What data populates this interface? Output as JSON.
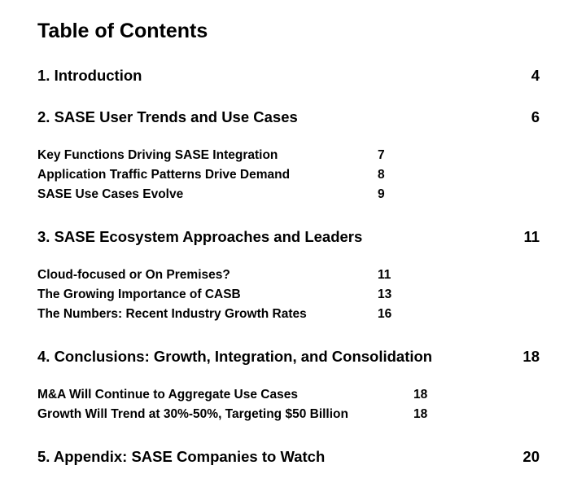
{
  "toc": {
    "title": "Table of Contents",
    "sections": [
      {
        "label": "1. Introduction",
        "page": "4",
        "subsections": []
      },
      {
        "label": "2. SASE User Trends and Use Cases",
        "page": "6",
        "subsections": [
          {
            "label": "Key Functions Driving SASE Integration",
            "page": "7"
          },
          {
            "label": "Application Traffic Patterns Drive Demand",
            "page": "8"
          },
          {
            "label": "SASE Use Cases Evolve",
            "page": "9"
          }
        ]
      },
      {
        "label": "3. SASE Ecosystem Approaches and Leaders",
        "page": "11",
        "subsections": [
          {
            "label": "Cloud-focused or On Premises?",
            "page": "11"
          },
          {
            "label": "The Growing Importance of CASB",
            "page": "13"
          },
          {
            "label": "The Numbers: Recent Industry Growth Rates",
            "page": "16"
          }
        ]
      },
      {
        "label": "4. Conclusions: Growth, Integration, and Consolidation",
        "page": "18",
        "subsections": [
          {
            "label": "M&A Will Continue to Aggregate Use Cases",
            "page": "18"
          },
          {
            "label": "Growth Will Trend at 30%-50%, Targeting $50 Billion",
            "page": "18"
          }
        ]
      },
      {
        "label": "5. Appendix: SASE Companies to Watch",
        "page": "20",
        "subsections": []
      }
    ]
  }
}
